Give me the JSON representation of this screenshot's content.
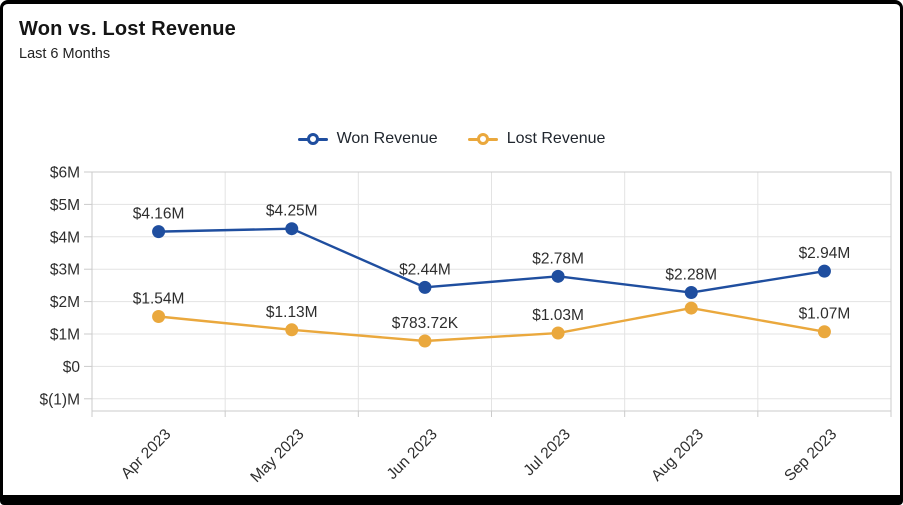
{
  "card": {
    "title": "Won vs. Lost Revenue",
    "subtitle": "Last 6 Months"
  },
  "chart_data": {
    "type": "line",
    "title": "Won vs. Lost Revenue",
    "subtitle": "Last 6 Months",
    "categories": [
      "Apr 2023",
      "May 2023",
      "Jun 2023",
      "Jul 2023",
      "Aug 2023",
      "Sep 2023"
    ],
    "series": [
      {
        "name": "Won Revenue",
        "color": "#1f4e9f",
        "values_millions": [
          4.16,
          4.25,
          2.44,
          2.78,
          2.28,
          2.94
        ],
        "point_labels": [
          "$4.16M",
          "$4.25M",
          "$2.44M",
          "$2.78M",
          "$2.28M",
          "$2.94M"
        ]
      },
      {
        "name": "Lost Revenue",
        "color": "#eaa83d",
        "values_millions": [
          1.54,
          1.13,
          0.78372,
          1.03,
          1.8,
          1.07
        ],
        "point_labels": [
          "$1.54M",
          "$1.13M",
          "$783.72K",
          "$1.03M",
          "",
          "$1.07M"
        ]
      }
    ],
    "y_ticks": [
      "$6M",
      "$5M",
      "$4M",
      "$3M",
      "$2M",
      "$1M",
      "$0",
      "$(1)M"
    ],
    "y_tick_values": [
      6,
      5,
      4,
      3,
      2,
      1,
      0,
      -1
    ],
    "ylim": [
      -1.38,
      6
    ],
    "grid": true,
    "legend_position": "top-center"
  },
  "colors": {
    "won_series": "#1f4e9f",
    "lost_series": "#eaa83d",
    "gridline": "#e3e3e3",
    "axis_border": "#cbcbcb",
    "label_text": "#2e2e2e",
    "title_text": "#141414",
    "card_border": "#000000",
    "background": "#ffffff"
  }
}
